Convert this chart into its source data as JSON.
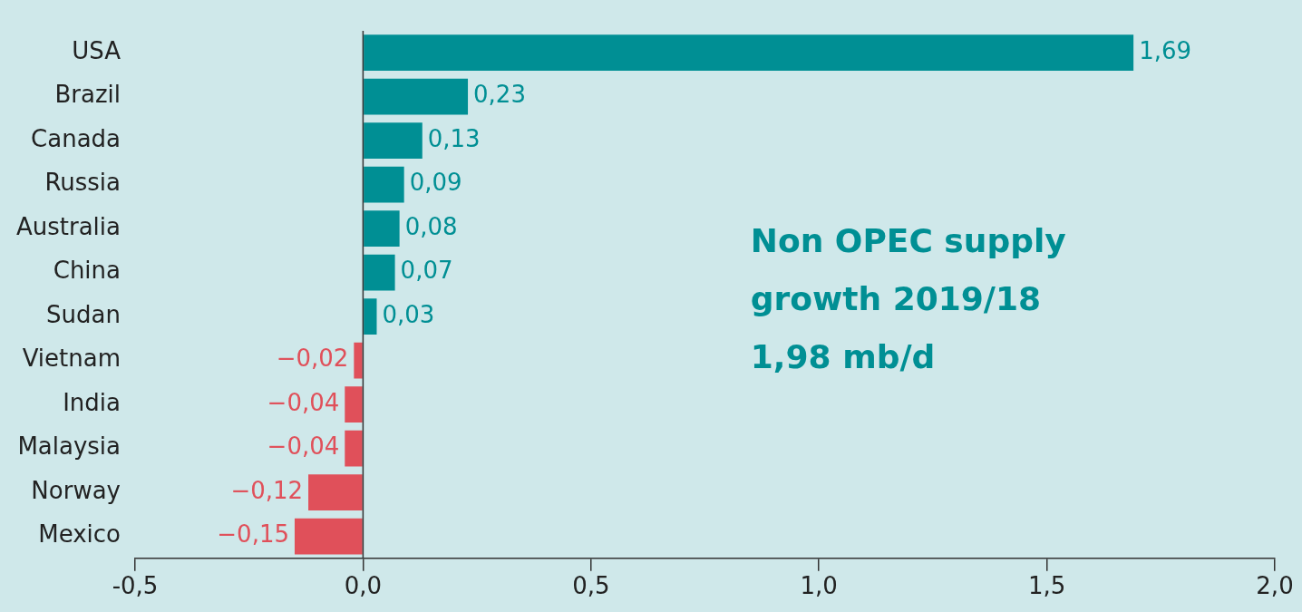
{
  "chart_data": {
    "type": "bar",
    "orientation": "horizontal",
    "categories": [
      "USA",
      "Brazil",
      "Canada",
      "Russia",
      "Australia",
      "China",
      "Sudan",
      "Vietnam",
      "India",
      "Malaysia",
      "Norway",
      "Mexico"
    ],
    "values": [
      1.69,
      0.23,
      0.13,
      0.09,
      0.08,
      0.07,
      0.03,
      -0.02,
      -0.04,
      -0.04,
      -0.12,
      -0.15
    ],
    "value_labels": [
      "1,69",
      "0,23",
      "0,13",
      "0,09",
      "0,08",
      "0,07",
      "0,03",
      "−0,02",
      "−0,04",
      "−0,04",
      "−0,12",
      "−0,15"
    ],
    "colors": [
      "#008f94",
      "#008f94",
      "#008f94",
      "#008f94",
      "#008f94",
      "#008f94",
      "#008f94",
      "#e0505a",
      "#e0505a",
      "#e0505a",
      "#e0505a",
      "#e0505a"
    ],
    "xlim": [
      -0.5,
      2.0
    ],
    "xticks": [
      {
        "value": -0.5,
        "label": "-0,5"
      },
      {
        "value": 0,
        "label": "0,0"
      },
      {
        "value": 0.5,
        "label": "0,5"
      },
      {
        "value": 1,
        "label": "1,0"
      },
      {
        "value": 1.5,
        "label": "1,5"
      },
      {
        "value": 2,
        "label": "2,0"
      }
    ],
    "annotations": [
      "Non OPEC supply\ngrowth 2019/18\n1,98 mb/d"
    ],
    "ref_lines": [
      {
        "axis": "x",
        "value": 0,
        "color": "#333333"
      }
    ],
    "grid": false,
    "legend": false
  }
}
